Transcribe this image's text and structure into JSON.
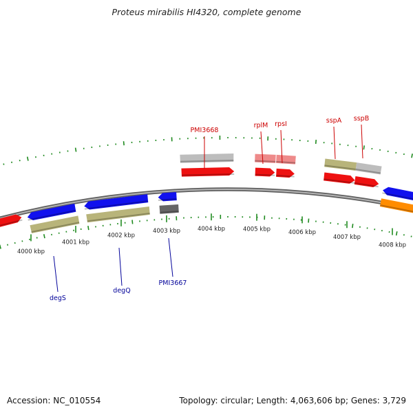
{
  "title": "Proteus mirabilis HI4320, complete genome",
  "footer": {
    "accession": "Accession: NC_010554",
    "summary": "Topology: circular; Length: 4,063,606 bp; Genes: 3,729"
  },
  "colors": {
    "backbone": "#8a8a8a",
    "tick": "#1f8a1f",
    "forward_label": "#cc0000",
    "reverse_label": "#000099",
    "cds_red": "#ee1111",
    "cds_blue": "#1111ee",
    "gene_olive": "#b8b47a",
    "gene_gray": "#bdbdbd",
    "gene_pink": "#ee8a8a",
    "gene_dark": "#666666",
    "gene_orange": "#ff8c00"
  },
  "kbp_labels": [
    "4000 kbp",
    "4001 kbp",
    "4002 kbp",
    "4003 kbp",
    "4004 kbp",
    "4005 kbp",
    "4006 kbp",
    "4007 kbp",
    "4008 kbp"
  ],
  "forward_genes": [
    "PMI3668",
    "rplM",
    "rpsI",
    "sspA",
    "sspB"
  ],
  "reverse_genes": [
    "degS",
    "degQ",
    "PMI3667"
  ]
}
